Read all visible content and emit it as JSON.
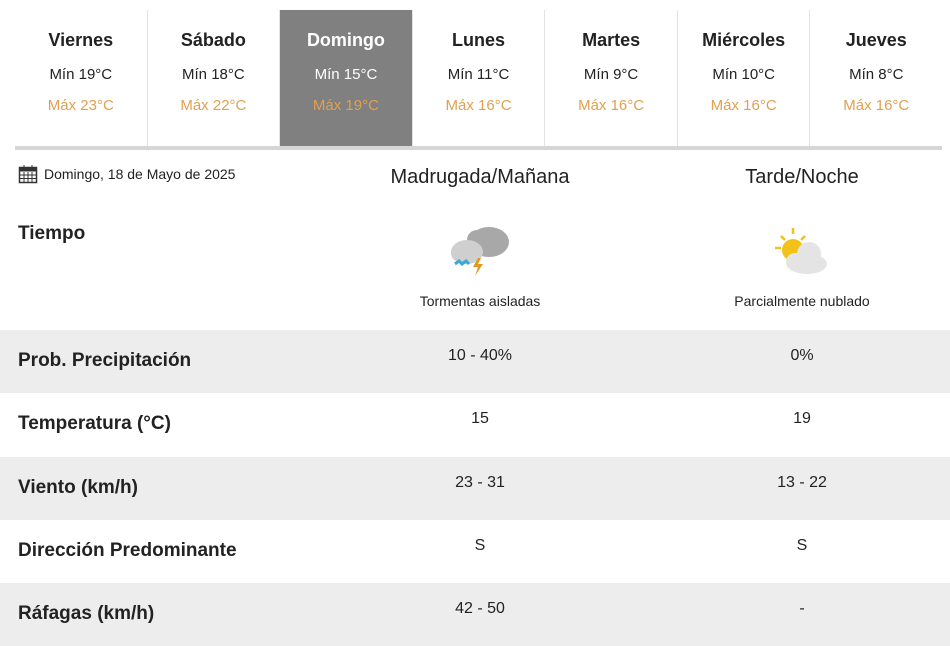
{
  "days": [
    {
      "name": "Viernes",
      "min": "Mín 19°C",
      "max": "Máx 23°C"
    },
    {
      "name": "Sábado",
      "min": "Mín 18°C",
      "max": "Máx 22°C"
    },
    {
      "name": "Domingo",
      "min": "Mín 15°C",
      "max": "Máx 19°C",
      "active": true
    },
    {
      "name": "Lunes",
      "min": "Mín 11°C",
      "max": "Máx 16°C"
    },
    {
      "name": "Martes",
      "min": "Mín 9°C",
      "max": "Máx 16°C"
    },
    {
      "name": "Miércoles",
      "min": "Mín 10°C",
      "max": "Máx 16°C"
    },
    {
      "name": "Jueves",
      "min": "Mín 8°C",
      "max": "Máx 16°C"
    }
  ],
  "date": "Domingo, 18 de Mayo de 2025",
  "columns": [
    "Madrugada/Mañana",
    "Tarde/Noche"
  ],
  "weather": {
    "label": "Tiempo",
    "values": [
      {
        "icon": "thunderstorm-icon",
        "text": "Tormentas aisladas"
      },
      {
        "icon": "partly-cloudy-icon",
        "text": "Parcialmente nublado"
      }
    ]
  },
  "rows": [
    {
      "label": "Prob. Precipitación",
      "values": [
        "10 - 40%",
        "0%"
      ]
    },
    {
      "label": "Temperatura (°C)",
      "values": [
        "15",
        "19"
      ]
    },
    {
      "label": "Viento (km/h)",
      "values": [
        "23 - 31",
        "13 - 22"
      ]
    },
    {
      "label": "Dirección Predominante",
      "values": [
        "S",
        "S"
      ]
    },
    {
      "label": "Ráfagas (km/h)",
      "values": [
        "42 - 50",
        "-"
      ]
    }
  ],
  "colors": {
    "active_tab": "#808080",
    "max_temp": "#e0a050",
    "row_shade": "#ededed"
  }
}
